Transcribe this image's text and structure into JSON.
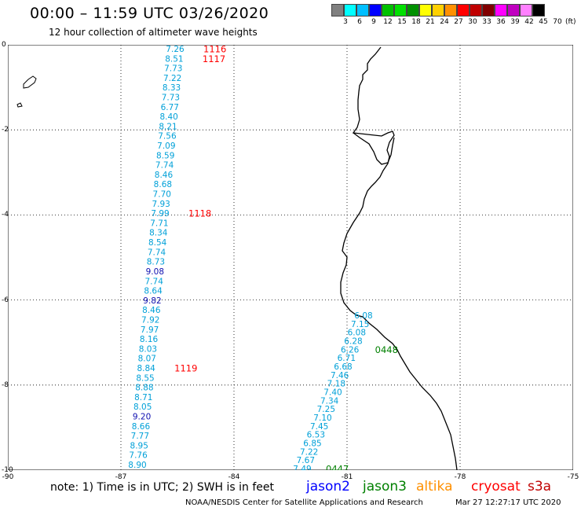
{
  "header": {
    "title": "00:00 – 11:59 UTC 03/26/2020",
    "subtitle": "12 hour collection of altimeter wave heights"
  },
  "legend": {
    "unit": "(ft)",
    "items": [
      {
        "label": "",
        "color": "#808080"
      },
      {
        "label": "3",
        "color": "#00ffff"
      },
      {
        "label": "6",
        "color": "#00bfff"
      },
      {
        "label": "9",
        "color": "#0000ff"
      },
      {
        "label": "12",
        "color": "#00c000"
      },
      {
        "label": "15",
        "color": "#00e000"
      },
      {
        "label": "18",
        "color": "#009000"
      },
      {
        "label": "21",
        "color": "#ffff00"
      },
      {
        "label": "24",
        "color": "#ffd000"
      },
      {
        "label": "27",
        "color": "#ff9000"
      },
      {
        "label": "30",
        "color": "#ff0000"
      },
      {
        "label": "33",
        "color": "#c00000"
      },
      {
        "label": "36",
        "color": "#800000"
      },
      {
        "label": "39",
        "color": "#ff00ff"
      },
      {
        "label": "42",
        "color": "#c000c0"
      },
      {
        "label": "45",
        "color": "#ff80ff"
      },
      {
        "label": "70",
        "color": "#000000"
      }
    ]
  },
  "map": {
    "lon_range": [
      -90,
      -75
    ],
    "lat_range": [
      -10,
      0
    ],
    "x_ticks": [
      "-90",
      "-87",
      "-84",
      "-81",
      "-78",
      "-75"
    ],
    "y_ticks": [
      "0",
      "-2",
      "-4",
      "-6",
      "-8",
      "-10"
    ],
    "track1": {
      "labels": [
        {
          "text": "1116",
          "color": "#ff0000"
        },
        {
          "text": "1117",
          "color": "#ff0000"
        },
        {
          "text": "1118",
          "color": "#ff0000"
        },
        {
          "text": "1119",
          "color": "#ff0000"
        }
      ],
      "color_default": "#00a0d8",
      "color_alt": "#1010b0",
      "values": [
        "7.26",
        "8.51",
        "7.73",
        "7.22",
        "8.33",
        "7.73",
        "6.77",
        "8.40",
        "8.21",
        "7.56",
        "7.09",
        "8.59",
        "7.74",
        "8.46",
        "8.68",
        "7.70",
        "7.93",
        "7.99",
        "7.71",
        "8.34",
        "8.54",
        "7.74",
        "8.73",
        "9.08",
        "7.74",
        "8.64",
        "9.82",
        "8.46",
        "7.92",
        "7.97",
        "8.16",
        "8.03",
        "8.07",
        "8.84",
        "8.55",
        "8.88",
        "8.71",
        "8.05",
        "9.20",
        "8.66",
        "7.77",
        "8.95",
        "7.76",
        "8.90"
      ]
    },
    "track2": {
      "labels": [
        {
          "text": "0448",
          "color": "#008000"
        },
        {
          "text": "0447",
          "color": "#008000"
        }
      ],
      "color_default": "#00a0d8",
      "values": [
        "6.08",
        "7.15",
        "6.08",
        "6.28",
        "6.26",
        "6.71",
        "6.68",
        "7.46",
        "7.18",
        "7.40",
        "7.34",
        "7.25",
        "7.10",
        "7.45",
        "6.53",
        "6.85",
        "7.22",
        "7.67",
        "7.49"
      ]
    }
  },
  "footer": {
    "note": "note:  1) Time is in UTC;  2) SWH is in feet",
    "missions": [
      {
        "name": "jason2",
        "color": "#0000ff"
      },
      {
        "name": "jason3",
        "color": "#008000"
      },
      {
        "name": "altika",
        "color": "#ff9000"
      },
      {
        "name": "cryosat",
        "color": "#ff0000"
      },
      {
        "name": "s3a",
        "color": "#c00000"
      }
    ],
    "credit": "NOAA/NESDIS Center for Satellite Applications and Research",
    "timestamp": "Mar 27 12:27:17 UTC 2020"
  }
}
